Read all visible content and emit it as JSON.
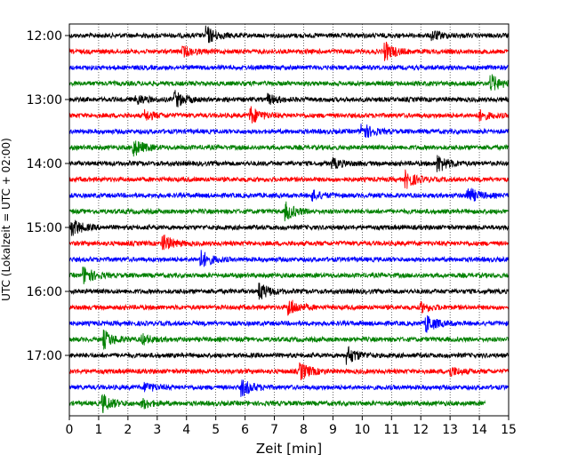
{
  "chart_data": {
    "type": "line",
    "title": "",
    "xlabel": "Zeit  [min]",
    "ylabel": "UTC (Lokalzeit = UTC + 02:00)",
    "xlim": [
      0,
      15
    ],
    "x_ticks": [
      "0",
      "1",
      "2",
      "3",
      "4",
      "5",
      "6",
      "7",
      "8",
      "9",
      "10",
      "11",
      "12",
      "13",
      "14",
      "15"
    ],
    "y_ticks": [
      "12:00",
      "13:00",
      "14:00",
      "15:00",
      "16:00",
      "17:00"
    ],
    "grid": "vertical dotted",
    "trace_interval_minutes": 15,
    "start_time": "12:00",
    "series_colors": [
      "#000000",
      "#ff0000",
      "#0000ff",
      "#008000"
    ],
    "traces": [
      {
        "start": "12:00",
        "color": "#000000",
        "events_min": [
          4.7,
          12.4
        ]
      },
      {
        "start": "12:15",
        "color": "#ff0000",
        "events_min": [
          10.8,
          3.9
        ]
      },
      {
        "start": "12:30",
        "color": "#0000ff",
        "events_min": []
      },
      {
        "start": "12:45",
        "color": "#008000",
        "events_min": [
          14.4
        ]
      },
      {
        "start": "13:00",
        "color": "#000000",
        "events_min": [
          3.6,
          2.3,
          6.8
        ]
      },
      {
        "start": "13:15",
        "color": "#ff0000",
        "events_min": [
          6.2,
          14.0,
          2.6
        ]
      },
      {
        "start": "13:30",
        "color": "#0000ff",
        "events_min": [
          10.0
        ]
      },
      {
        "start": "13:45",
        "color": "#008000",
        "events_min": [
          2.2
        ]
      },
      {
        "start": "14:00",
        "color": "#000000",
        "events_min": [
          12.6,
          9.0
        ]
      },
      {
        "start": "14:15",
        "color": "#ff0000",
        "events_min": [
          11.5
        ]
      },
      {
        "start": "14:30",
        "color": "#0000ff",
        "events_min": [
          13.6,
          8.3
        ]
      },
      {
        "start": "14:45",
        "color": "#008000",
        "events_min": [
          7.4
        ]
      },
      {
        "start": "15:00",
        "color": "#000000",
        "events_min": [
          0.1
        ]
      },
      {
        "start": "15:15",
        "color": "#ff0000",
        "events_min": [
          3.2
        ]
      },
      {
        "start": "15:30",
        "color": "#0000ff",
        "events_min": [
          4.5
        ]
      },
      {
        "start": "15:45",
        "color": "#008000",
        "events_min": [
          0.5
        ]
      },
      {
        "start": "16:00",
        "color": "#000000",
        "events_min": [
          6.5
        ]
      },
      {
        "start": "16:15",
        "color": "#ff0000",
        "events_min": [
          7.5,
          12.0
        ]
      },
      {
        "start": "16:30",
        "color": "#0000ff",
        "events_min": [
          12.2
        ]
      },
      {
        "start": "16:45",
        "color": "#008000",
        "events_min": [
          1.2,
          2.5
        ]
      },
      {
        "start": "17:00",
        "color": "#000000",
        "events_min": [
          9.5
        ]
      },
      {
        "start": "17:15",
        "color": "#ff0000",
        "events_min": [
          7.9,
          13.0
        ]
      },
      {
        "start": "17:30",
        "color": "#0000ff",
        "events_min": [
          5.9,
          2.6
        ]
      },
      {
        "start": "17:45",
        "color": "#008000",
        "events_min": [
          1.15,
          2.5
        ],
        "end_min": 14.2
      }
    ]
  }
}
